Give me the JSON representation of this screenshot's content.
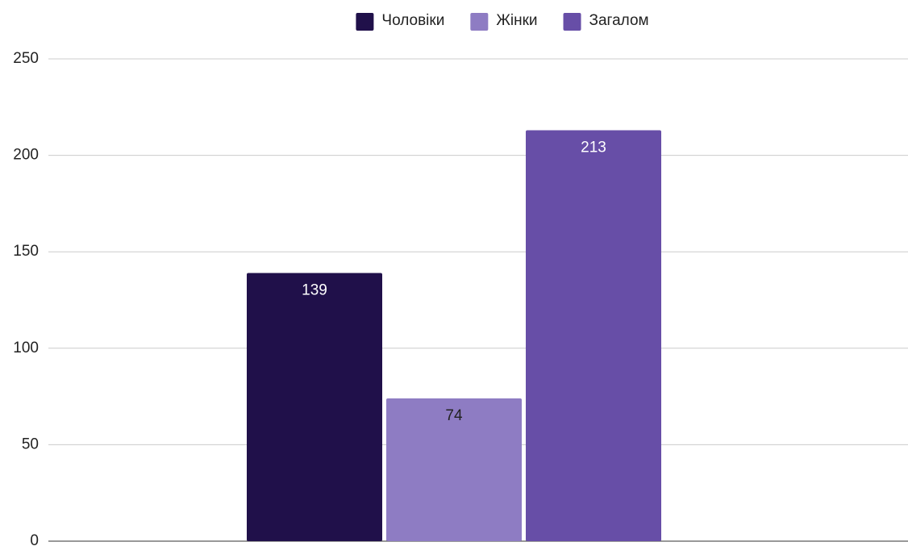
{
  "chart_data": {
    "type": "bar",
    "categories": [
      null
    ],
    "series": [
      {
        "name": "Чоловіки",
        "color": "#20104a",
        "values": [
          139
        ]
      },
      {
        "name": "Жінки",
        "color": "#8e7cc3",
        "values": [
          74
        ]
      },
      {
        "name": "Загалом",
        "color": "#674ea7",
        "values": [
          213
        ]
      }
    ],
    "ylim": [
      0,
      250
    ],
    "yticks": [
      0,
      50,
      100,
      150,
      200,
      250
    ],
    "grid": true,
    "legend": "top"
  }
}
